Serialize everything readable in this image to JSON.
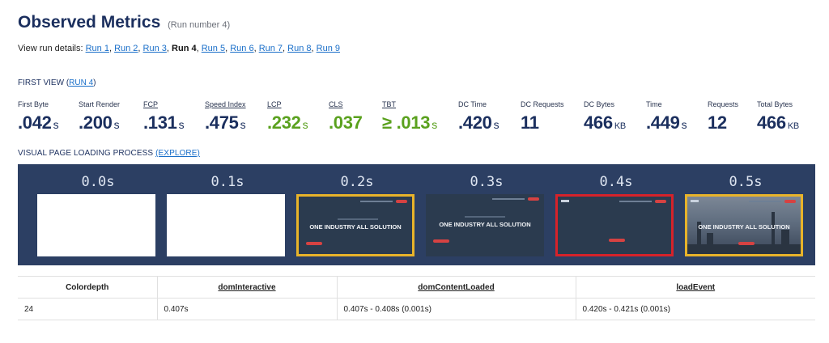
{
  "header": {
    "title": "Observed Metrics",
    "subtitle": "(Run number 4)"
  },
  "runs": {
    "prefix": "View run details:",
    "items": [
      {
        "label": "Run 1",
        "current": false
      },
      {
        "label": "Run 2",
        "current": false
      },
      {
        "label": "Run 3",
        "current": false
      },
      {
        "label": "Run 4",
        "current": true
      },
      {
        "label": "Run 5",
        "current": false
      },
      {
        "label": "Run 6",
        "current": false
      },
      {
        "label": "Run 7",
        "current": false
      },
      {
        "label": "Run 8",
        "current": false
      },
      {
        "label": "Run 9",
        "current": false
      }
    ]
  },
  "first_view": {
    "label": "FIRST VIEW",
    "link": "RUN 4"
  },
  "metrics": [
    {
      "label": "First Byte",
      "value": ".042",
      "unit": "s"
    },
    {
      "label": "Start Render",
      "value": ".200",
      "unit": "s"
    },
    {
      "label": "FCP",
      "value": ".131",
      "unit": "s"
    },
    {
      "label": "Speed Index",
      "value": ".475",
      "unit": "s"
    },
    {
      "label": "LCP",
      "value": ".232",
      "unit": "s"
    },
    {
      "label": "CLS",
      "value": ".037",
      "unit": ""
    },
    {
      "label": "TBT",
      "value": "≥ .013",
      "unit": "s"
    },
    {
      "label": "DC Time",
      "value": ".420",
      "unit": "s"
    },
    {
      "label": "DC Requests",
      "value": "11",
      "unit": ""
    },
    {
      "label": "DC Bytes",
      "value": "466",
      "unit": "KB"
    },
    {
      "label": "Time",
      "value": ".449",
      "unit": "s"
    },
    {
      "label": "Requests",
      "value": "12",
      "unit": ""
    },
    {
      "label": "Total Bytes",
      "value": "466",
      "unit": "KB"
    }
  ],
  "visual": {
    "label": "VISUAL PAGE LOADING PROCESS",
    "link": "(EXPLORE)",
    "frames": [
      {
        "time": "0.0s",
        "text": ""
      },
      {
        "time": "0.1s",
        "text": ""
      },
      {
        "time": "0.2s",
        "text": "ONE INDUSTRY ALL SOLUTION"
      },
      {
        "time": "0.3s",
        "text": "ONE INDUSTRY ALL SOLUTION"
      },
      {
        "time": "0.4s",
        "text": ""
      },
      {
        "time": "0.5s",
        "text": "ONE INDUSTRY ALL SOLUTION"
      }
    ]
  },
  "table": {
    "headers": [
      "Colordepth",
      "domInteractive",
      "domContentLoaded",
      "loadEvent"
    ],
    "row": [
      "24",
      "0.407s",
      "0.407s - 0.408s (0.001s)",
      "0.420s - 0.421s (0.001s)"
    ]
  },
  "colors": {
    "navy": "#1b2f5e",
    "green": "#5aa11e",
    "link": "#1a6fc9",
    "filmstrip": "#2c3f63",
    "yellow": "#e8b32a",
    "red": "#d6222a"
  }
}
